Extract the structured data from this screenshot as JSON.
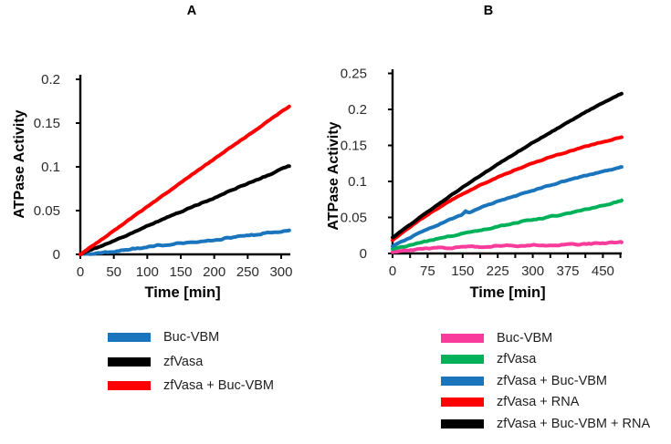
{
  "chart_data": [
    {
      "title": "A",
      "type": "line",
      "xlabel": "Time [min]",
      "ylabel": "ATPase Activity",
      "xlim": [
        0,
        312
      ],
      "ylim": [
        0,
        0.2
      ],
      "xticks": [
        0,
        50,
        100,
        150,
        200,
        250,
        300
      ],
      "yticks": [
        0,
        0.05,
        0.1,
        0.15,
        0.2
      ],
      "grid": false,
      "legend_position": "below",
      "series": [
        {
          "name": "Buc-VBM",
          "color": "#1B75BC",
          "points": [
            [
              0,
              0
            ],
            [
              20,
              0.0005
            ],
            [
              40,
              0.002
            ],
            [
              60,
              0.0045
            ],
            [
              80,
              0.0065
            ],
            [
              100,
              0.0085
            ],
            [
              120,
              0.01
            ],
            [
              140,
              0.012
            ],
            [
              160,
              0.0135
            ],
            [
              180,
              0.015
            ],
            [
              200,
              0.017
            ],
            [
              220,
              0.0185
            ],
            [
              240,
              0.021
            ],
            [
              260,
              0.0225
            ],
            [
              280,
              0.0245
            ],
            [
              300,
              0.027
            ],
            [
              312,
              0.0285
            ]
          ]
        },
        {
          "name": "zfVasa",
          "color": "#000000",
          "points": [
            [
              0,
              0
            ],
            [
              40,
              0.0125
            ],
            [
              80,
              0.0255
            ],
            [
              120,
              0.039
            ],
            [
              160,
              0.052
            ],
            [
              200,
              0.0645
            ],
            [
              240,
              0.078
            ],
            [
              280,
              0.0905
            ],
            [
              312,
              0.101
            ]
          ]
        },
        {
          "name": "zfVasa + Buc-VBM",
          "color": "#FF0000",
          "points": [
            [
              0,
              0
            ],
            [
              40,
              0.0215
            ],
            [
              80,
              0.0435
            ],
            [
              120,
              0.0655
            ],
            [
              160,
              0.0875
            ],
            [
              200,
              0.109
            ],
            [
              240,
              0.1305
            ],
            [
              280,
              0.152
            ],
            [
              312,
              0.169
            ]
          ]
        }
      ]
    },
    {
      "title": "B",
      "type": "line",
      "xlabel": "Time [min]",
      "ylabel": "ATPase Activity",
      "xlim": [
        0,
        490
      ],
      "ylim": [
        0,
        0.25
      ],
      "xticks": [
        0,
        75,
        150,
        225,
        300,
        375,
        450
      ],
      "minor_x_step": 37.5,
      "yticks": [
        0,
        0.05,
        0.1,
        0.15,
        0.2,
        0.25
      ],
      "grid": false,
      "legend_position": "below",
      "series": [
        {
          "name": "Buc-VBM",
          "color": "#F93C9C",
          "points": [
            [
              0,
              0.002
            ],
            [
              40,
              0.005
            ],
            [
              80,
              0.007
            ],
            [
              120,
              0.008
            ],
            [
              160,
              0.009
            ],
            [
              200,
              0.0095
            ],
            [
              240,
              0.0105
            ],
            [
              280,
              0.011
            ],
            [
              320,
              0.0115
            ],
            [
              360,
              0.012
            ],
            [
              400,
              0.013
            ],
            [
              440,
              0.014
            ],
            [
              470,
              0.015
            ],
            [
              490,
              0.016
            ]
          ]
        },
        {
          "name": "zfVasa",
          "color": "#00B15A",
          "points": [
            [
              0,
              0.006
            ],
            [
              40,
              0.012
            ],
            [
              80,
              0.018
            ],
            [
              120,
              0.0235
            ],
            [
              160,
              0.029
            ],
            [
              200,
              0.034
            ],
            [
              240,
              0.039
            ],
            [
              280,
              0.0445
            ],
            [
              320,
              0.049
            ],
            [
              360,
              0.0535
            ],
            [
              400,
              0.059
            ],
            [
              440,
              0.065
            ],
            [
              490,
              0.073
            ]
          ]
        },
        {
          "name": "zfVasa + Buc-VBM",
          "color": "#1B75BC",
          "points": [
            [
              0,
              0.01
            ],
            [
              37.5,
              0.022
            ],
            [
              75,
              0.0335
            ],
            [
              112.5,
              0.044
            ],
            [
              150,
              0.054
            ],
            [
              156,
              0.0585
            ],
            [
              163,
              0.0555
            ],
            [
              187.5,
              0.063
            ],
            [
              225,
              0.072
            ],
            [
              262.5,
              0.08
            ],
            [
              300,
              0.0875
            ],
            [
              337.5,
              0.0945
            ],
            [
              375,
              0.1015
            ],
            [
              412.5,
              0.108
            ],
            [
              450,
              0.114
            ],
            [
              490,
              0.12
            ]
          ]
        },
        {
          "name": "zfVasa + RNA",
          "color": "#FF0000",
          "points": [
            [
              0,
              0.018
            ],
            [
              37.5,
              0.037
            ],
            [
              75,
              0.054
            ],
            [
              112.5,
              0.069
            ],
            [
              150,
              0.083
            ],
            [
              187.5,
              0.095
            ],
            [
              225,
              0.106
            ],
            [
              262.5,
              0.116
            ],
            [
              300,
              0.125
            ],
            [
              337.5,
              0.134
            ],
            [
              375,
              0.141
            ],
            [
              412.5,
              0.1485
            ],
            [
              450,
              0.155
            ],
            [
              490,
              0.1615
            ]
          ]
        },
        {
          "name": "zfVasa + Buc-VBM + RNA",
          "color": "#000000",
          "points": [
            [
              0,
              0.022
            ],
            [
              37.5,
              0.04
            ],
            [
              75,
              0.058
            ],
            [
              112.5,
              0.075
            ],
            [
              150,
              0.092
            ],
            [
              187.5,
              0.108
            ],
            [
              225,
              0.124
            ],
            [
              262.5,
              0.139
            ],
            [
              300,
              0.154
            ],
            [
              337.5,
              0.168
            ],
            [
              375,
              0.182
            ],
            [
              412.5,
              0.196
            ],
            [
              450,
              0.209
            ],
            [
              490,
              0.222
            ]
          ]
        }
      ]
    }
  ]
}
